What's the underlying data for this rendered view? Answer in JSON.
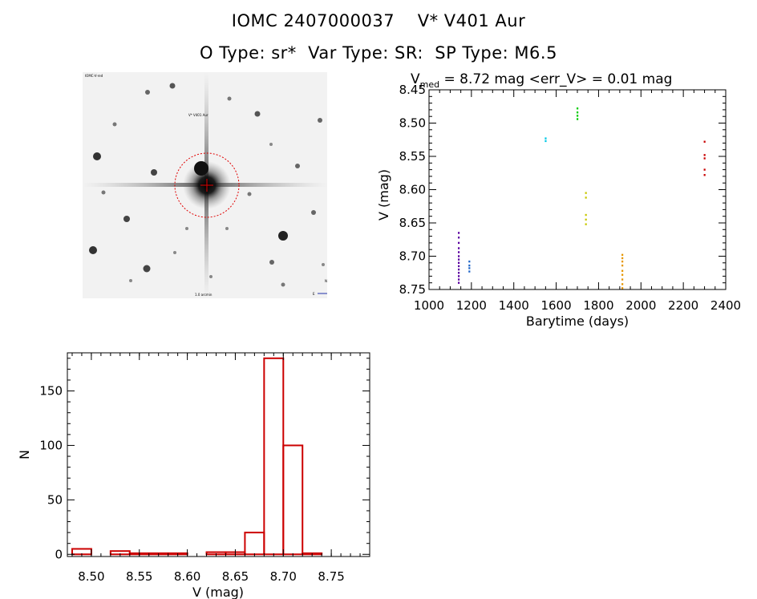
{
  "header": {
    "line1": "IOMC 2407000037    V* V401 Aur",
    "line2": "O Type: sr*  Var Type: SR:  SP Type: M6.5"
  },
  "sky_image": {
    "labels": [
      "IOMC-V-red",
      "V* V401 Aur",
      "1.0 arcmin",
      "N",
      "E"
    ]
  },
  "chart_data": [
    {
      "type": "scatter",
      "title_main": "V",
      "title_sub": "med",
      "title_rest": " = 8.72 mag <err_V> = 0.01 mag",
      "xlabel": "Barytime (days)",
      "ylabel": "V (mag)",
      "xlim": [
        1000,
        2400
      ],
      "ylim": [
        8.75,
        8.45
      ],
      "xticks": [
        1000,
        1200,
        1400,
        1600,
        1800,
        2000,
        2200,
        2400
      ],
      "yticks": [
        8.45,
        8.5,
        8.55,
        8.6,
        8.65,
        8.7,
        8.75
      ],
      "ytick_labels": [
        "8.45",
        "8.50",
        "8.55",
        "8.60",
        "8.65",
        "8.70",
        "8.75"
      ],
      "series": [
        {
          "name": "group1",
          "color": "#5a00a0",
          "points": [
            [
              1140,
              8.665
            ],
            [
              1140,
              8.672
            ],
            [
              1140,
              8.68
            ],
            [
              1140,
              8.688
            ],
            [
              1140,
              8.694
            ],
            [
              1140,
              8.7
            ],
            [
              1140,
              8.705
            ],
            [
              1140,
              8.71
            ],
            [
              1140,
              8.715
            ],
            [
              1140,
              8.72
            ],
            [
              1140,
              8.725
            ],
            [
              1140,
              8.73
            ],
            [
              1140,
              8.735
            ],
            [
              1140,
              8.74
            ]
          ]
        },
        {
          "name": "group2",
          "color": "#1e64c8",
          "points": [
            [
              1190,
              8.708
            ],
            [
              1190,
              8.714
            ],
            [
              1190,
              8.718
            ],
            [
              1190,
              8.723
            ]
          ]
        },
        {
          "name": "group3",
          "color": "#00c8e6",
          "points": [
            [
              1550,
              8.523
            ],
            [
              1550,
              8.527
            ]
          ]
        },
        {
          "name": "group4",
          "color": "#00cc00",
          "points": [
            [
              1700,
              8.478
            ],
            [
              1700,
              8.484
            ],
            [
              1700,
              8.489
            ],
            [
              1700,
              8.494
            ]
          ]
        },
        {
          "name": "group5",
          "color": "#c8c800",
          "points": [
            [
              1740,
              8.605
            ],
            [
              1740,
              8.612
            ],
            [
              1740,
              8.638
            ],
            [
              1740,
              8.645
            ],
            [
              1740,
              8.652
            ]
          ]
        },
        {
          "name": "group6",
          "color": "#e69600",
          "points": [
            [
              1912,
              8.698
            ],
            [
              1912,
              8.703
            ],
            [
              1912,
              8.708
            ],
            [
              1912,
              8.714
            ],
            [
              1912,
              8.722
            ],
            [
              1912,
              8.728
            ],
            [
              1912,
              8.735
            ],
            [
              1912,
              8.742
            ],
            [
              1912,
              8.748
            ]
          ]
        },
        {
          "name": "group7",
          "color": "#c80000",
          "points": [
            [
              2300,
              8.528
            ],
            [
              2300,
              8.548
            ],
            [
              2300,
              8.553
            ],
            [
              2300,
              8.57
            ],
            [
              2300,
              8.578
            ]
          ]
        }
      ]
    },
    {
      "type": "bar",
      "title": "",
      "xlabel": "V (mag)",
      "ylabel": "N",
      "xlim": [
        8.475,
        8.79
      ],
      "ylim": [
        -2,
        185
      ],
      "xticks": [
        8.5,
        8.55,
        8.6,
        8.65,
        8.7,
        8.75
      ],
      "xtick_labels": [
        "8.50",
        "8.55",
        "8.60",
        "8.65",
        "8.70",
        "8.75"
      ],
      "yticks": [
        0,
        50,
        100,
        150
      ],
      "bin_edges": [
        8.48,
        8.5,
        8.52,
        8.54,
        8.56,
        8.58,
        8.6,
        8.62,
        8.64,
        8.66,
        8.68,
        8.7,
        8.72,
        8.74,
        8.76
      ],
      "values": [
        5,
        0,
        3,
        1,
        1,
        1,
        0,
        2,
        2,
        20,
        180,
        100,
        1,
        0
      ],
      "color": "#cc0000"
    }
  ]
}
